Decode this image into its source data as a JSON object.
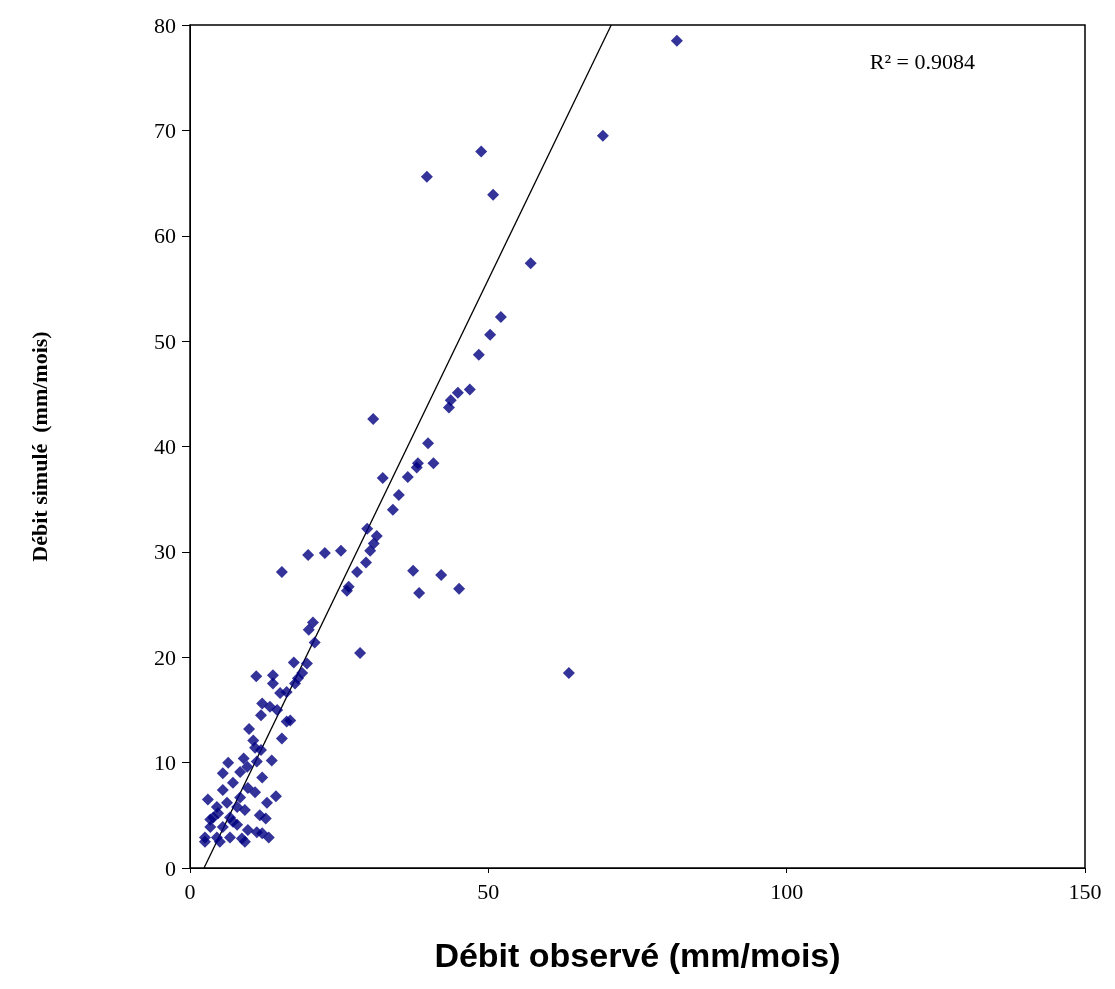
{
  "chart_data": {
    "type": "scatter",
    "xlabel": "Débit observé (mm/mois)",
    "ylabel": "Débit simulé  (mm/mois)",
    "xlim": [
      0,
      150
    ],
    "xticks": [
      0,
      50,
      100,
      150
    ],
    "ylim": [
      0,
      80
    ],
    "yticks": [
      0,
      10,
      20,
      30,
      40,
      50,
      60,
      70,
      80
    ],
    "grid": false,
    "marker": "diamond",
    "annotations": [
      "R² = 0.9084"
    ],
    "series": [
      {
        "color": "#000080",
        "x": [
          81.6,
          69.2,
          48.8,
          39.7,
          50.8,
          57.1,
          52.1,
          50.3,
          48.4,
          46.9,
          44.9,
          43.7,
          43.4,
          30.7,
          39.9,
          40.8,
          38.2,
          38.0,
          36.5,
          32.3,
          35.0,
          34.0,
          31.3,
          29.7,
          30.8,
          30.2,
          29.5,
          28.0,
          25.3,
          22.6,
          19.8,
          15.4,
          37.4,
          42.1,
          38.4,
          45.1,
          26.6,
          26.3,
          28.5,
          63.5,
          20.6,
          19.9,
          20.9,
          17.4,
          19.6,
          11.1,
          13.9,
          13.9,
          18.8,
          18.1,
          17.6,
          15.1,
          16.2,
          12.1,
          13.4,
          11.9,
          14.6,
          16.8,
          16.2,
          9.9,
          15.4,
          10.6,
          10.9,
          11.9,
          9.0,
          13.7,
          11.2,
          6.4,
          5.5,
          8.4,
          9.6,
          12.1,
          7.2,
          9.7,
          10.9,
          14.4,
          12.9,
          3.0,
          4.5,
          6.2,
          7.9,
          9.2,
          3.9,
          6.7,
          11.7,
          12.7,
          3.4,
          5.5,
          7.9,
          9.7,
          11.2,
          2.5,
          4.5,
          6.7,
          8.7,
          12.1,
          13.2,
          2.5,
          5.0,
          9.2,
          4.7,
          7.2,
          8.4,
          5.5,
          3.4
        ],
        "values": [
          78.5,
          69.5,
          68.0,
          65.6,
          63.9,
          57.4,
          52.3,
          50.6,
          48.7,
          45.4,
          45.1,
          44.4,
          43.7,
          42.6,
          40.3,
          38.4,
          38.4,
          38.0,
          37.1,
          37.0,
          35.4,
          34.0,
          31.5,
          32.2,
          30.8,
          30.1,
          29.0,
          28.1,
          30.1,
          29.9,
          29.7,
          28.1,
          28.2,
          27.8,
          26.1,
          26.5,
          26.7,
          26.3,
          20.4,
          18.5,
          23.3,
          22.6,
          21.4,
          19.5,
          19.4,
          18.2,
          18.3,
          17.5,
          18.5,
          18.0,
          17.5,
          16.6,
          16.7,
          15.6,
          15.3,
          14.5,
          15.0,
          14.0,
          13.9,
          13.2,
          12.3,
          12.1,
          11.4,
          11.2,
          10.4,
          10.2,
          10.1,
          10.0,
          9.0,
          9.1,
          9.6,
          8.6,
          8.1,
          7.6,
          7.2,
          6.8,
          6.2,
          6.5,
          5.8,
          6.2,
          5.8,
          5.5,
          4.8,
          4.8,
          5.0,
          4.7,
          3.9,
          3.9,
          4.1,
          3.6,
          3.4,
          2.9,
          2.9,
          2.9,
          2.8,
          3.3,
          2.9,
          2.5,
          2.5,
          2.5,
          5.2,
          4.4,
          6.7,
          7.4,
          4.6
        ]
      },
      {
        "type": "line",
        "color": "#000000",
        "marker": "none",
        "x": [
          2.35,
          70.6
        ],
        "values": [
          0,
          80
        ]
      }
    ]
  }
}
